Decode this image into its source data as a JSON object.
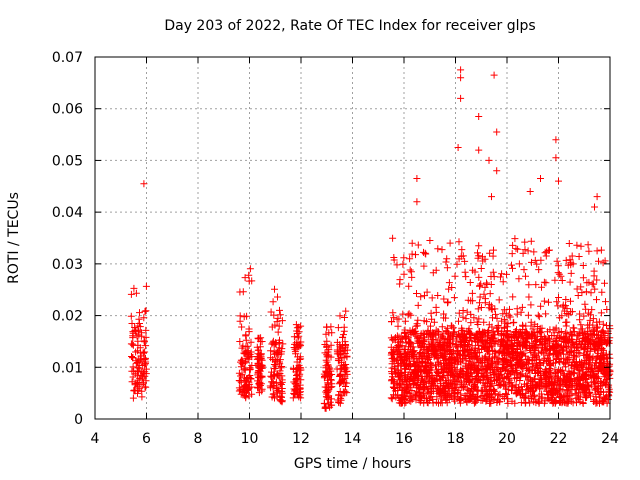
{
  "chart_data": {
    "type": "scatter",
    "title": "Day 203 of 2022, Rate Of TEC Index for receiver glps",
    "xlabel": "GPS time / hours",
    "ylabel": "ROTI / TECUs",
    "xlim": [
      4,
      24
    ],
    "ylim": [
      0,
      0.07
    ],
    "x_ticks": [
      "4",
      "6",
      "8",
      "10",
      "12",
      "14",
      "16",
      "18",
      "20",
      "22",
      "24"
    ],
    "y_ticks": [
      "0",
      "0.01",
      "0.02",
      "0.03",
      "0.04",
      "0.05",
      "0.06",
      "0.07"
    ],
    "grid": true,
    "marker": "+",
    "color": "#ff0000",
    "clusters": [
      {
        "x_start": 5.4,
        "x_end": 6.0,
        "y_base": [
          0.004,
          0.017
        ],
        "y_max": 0.028
      },
      {
        "x_start": 9.6,
        "x_end": 10.1,
        "y_base": [
          0.004,
          0.013
        ],
        "y_max": 0.03
      },
      {
        "x_start": 10.3,
        "x_end": 10.5,
        "y_base": [
          0.005,
          0.012
        ],
        "y_max": 0.016
      },
      {
        "x_start": 10.8,
        "x_end": 11.3,
        "y_base": [
          0.003,
          0.015
        ],
        "y_max": 0.026
      },
      {
        "x_start": 11.7,
        "x_end": 12.0,
        "y_base": [
          0.004,
          0.014
        ],
        "y_max": 0.019
      },
      {
        "x_start": 12.9,
        "x_end": 13.2,
        "y_base": [
          0.002,
          0.012
        ],
        "y_max": 0.02
      },
      {
        "x_start": 13.4,
        "x_end": 13.8,
        "y_base": [
          0.003,
          0.014
        ],
        "y_max": 0.021
      },
      {
        "x_start": 15.5,
        "x_end": 24.0,
        "y_base": [
          0.003,
          0.017
        ],
        "y_max": 0.035
      }
    ],
    "outliers": [
      {
        "x": 5.9,
        "y": 0.0455
      },
      {
        "x": 16.5,
        "y": 0.0465
      },
      {
        "x": 16.5,
        "y": 0.042
      },
      {
        "x": 18.1,
        "y": 0.0525
      },
      {
        "x": 18.2,
        "y": 0.0675
      },
      {
        "x": 18.2,
        "y": 0.066
      },
      {
        "x": 18.2,
        "y": 0.062
      },
      {
        "x": 18.9,
        "y": 0.0585
      },
      {
        "x": 18.9,
        "y": 0.052
      },
      {
        "x": 19.3,
        "y": 0.05
      },
      {
        "x": 19.5,
        "y": 0.0665
      },
      {
        "x": 19.6,
        "y": 0.0555
      },
      {
        "x": 19.6,
        "y": 0.048
      },
      {
        "x": 19.4,
        "y": 0.043
      },
      {
        "x": 20.9,
        "y": 0.044
      },
      {
        "x": 21.3,
        "y": 0.0465
      },
      {
        "x": 21.9,
        "y": 0.054
      },
      {
        "x": 21.9,
        "y": 0.0505
      },
      {
        "x": 22.0,
        "y": 0.046
      },
      {
        "x": 23.5,
        "y": 0.043
      },
      {
        "x": 23.4,
        "y": 0.041
      },
      {
        "x": 23.5,
        "y": 0.0325
      }
    ]
  }
}
